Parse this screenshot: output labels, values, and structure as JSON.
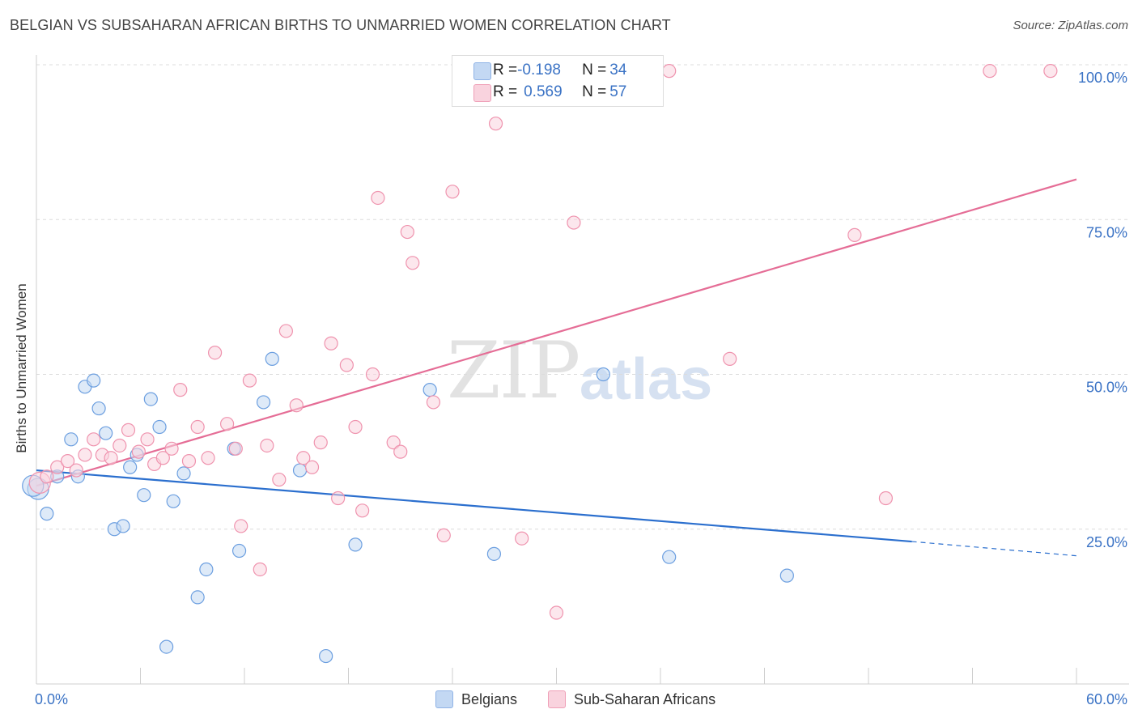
{
  "header": {
    "title": "BELGIAN VS SUBSAHARAN AFRICAN BIRTHS TO UNMARRIED WOMEN CORRELATION CHART",
    "source": "Source: ZipAtlas.com"
  },
  "watermark": {
    "zip": "ZIP",
    "atlas": "atlas"
  },
  "legend": {
    "rows": [
      {
        "r_label": "R = ",
        "r_value": "-0.198",
        "n_label": "N = ",
        "n_value": "34",
        "color": "#aac8f0"
      },
      {
        "r_label": "R = ",
        "r_value": "0.569",
        "n_label": "N = ",
        "n_value": "57",
        "color": "#f6b8ca"
      }
    ]
  },
  "bottom_legend": [
    {
      "label": "Belgians",
      "color": "#aac8f0"
    },
    {
      "label": "Sub-Saharan Africans",
      "color": "#f6b8ca"
    }
  ],
  "chart_data": {
    "type": "scatter",
    "title": "BELGIAN VS SUBSAHARAN AFRICAN BIRTHS TO UNMARRIED WOMEN CORRELATION CHART",
    "xlabel": "",
    "ylabel": "Births to Unmarried Women",
    "xlim": [
      0,
      60
    ],
    "ylim": [
      0,
      100
    ],
    "x_tick_labels": [
      {
        "value": 0,
        "label": "0.0%"
      },
      {
        "value": 60,
        "label": "60.0%"
      }
    ],
    "y_tick_labels": [
      {
        "value": 25,
        "label": "25.0%"
      },
      {
        "value": 50,
        "label": "50.0%"
      },
      {
        "value": 75,
        "label": "75.0%"
      },
      {
        "value": 100,
        "label": "100.0%"
      }
    ],
    "series": [
      {
        "name": "Belgians",
        "color": "#6c9fe0",
        "fill": "#c3d8f3",
        "line_color": "#2b6fce",
        "R": -0.198,
        "N": 34,
        "trend": {
          "x0": 0,
          "y0": 34.5,
          "x1": 50.5,
          "y1": 23.0,
          "dash_to_x": 60,
          "dash_to_y": 20.7
        },
        "points": [
          [
            0.1,
            31.5
          ],
          [
            0.6,
            27.5
          ],
          [
            1.2,
            33.5
          ],
          [
            2.0,
            39.5
          ],
          [
            2.4,
            33.5
          ],
          [
            2.8,
            48.0
          ],
          [
            3.3,
            49.0
          ],
          [
            3.6,
            44.5
          ],
          [
            4.0,
            40.5
          ],
          [
            4.5,
            25.0
          ],
          [
            5.0,
            25.5
          ],
          [
            5.4,
            35.0
          ],
          [
            5.8,
            37.0
          ],
          [
            6.2,
            30.5
          ],
          [
            6.6,
            46.0
          ],
          [
            7.1,
            41.5
          ],
          [
            7.5,
            6.0
          ],
          [
            7.9,
            29.5
          ],
          [
            8.5,
            34.0
          ],
          [
            9.3,
            14.0
          ],
          [
            9.8,
            18.5
          ],
          [
            11.4,
            38.0
          ],
          [
            11.7,
            21.5
          ],
          [
            13.1,
            45.5
          ],
          [
            13.6,
            52.5
          ],
          [
            15.2,
            34.5
          ],
          [
            16.7,
            4.5
          ],
          [
            18.4,
            22.5
          ],
          [
            22.7,
            47.5
          ],
          [
            26.4,
            21.0
          ],
          [
            32.7,
            50.0
          ],
          [
            36.5,
            20.5
          ],
          [
            43.3,
            17.5
          ],
          [
            -0.2,
            32.0
          ]
        ]
      },
      {
        "name": "Sub-Saharan Africans",
        "color": "#ef93ae",
        "fill": "#f9d3de",
        "line_color": "#e56d96",
        "R": 0.569,
        "N": 57,
        "trend": {
          "x0": 0,
          "y0": 32.0,
          "x1": 60,
          "y1": 81.5
        },
        "points": [
          [
            0.2,
            32.5
          ],
          [
            0.6,
            33.5
          ],
          [
            1.2,
            35.0
          ],
          [
            1.8,
            36.0
          ],
          [
            2.3,
            34.5
          ],
          [
            2.8,
            37.0
          ],
          [
            3.3,
            39.5
          ],
          [
            3.8,
            37.0
          ],
          [
            4.3,
            36.5
          ],
          [
            4.8,
            38.5
          ],
          [
            5.3,
            41.0
          ],
          [
            5.9,
            37.5
          ],
          [
            6.4,
            39.5
          ],
          [
            6.8,
            35.5
          ],
          [
            7.3,
            36.5
          ],
          [
            7.8,
            38.0
          ],
          [
            8.3,
            47.5
          ],
          [
            8.8,
            36.0
          ],
          [
            9.3,
            41.5
          ],
          [
            9.9,
            36.5
          ],
          [
            10.3,
            53.5
          ],
          [
            11.0,
            42.0
          ],
          [
            11.5,
            38.0
          ],
          [
            11.8,
            25.5
          ],
          [
            12.3,
            49.0
          ],
          [
            12.9,
            18.5
          ],
          [
            13.3,
            38.5
          ],
          [
            14.0,
            33.0
          ],
          [
            14.4,
            57.0
          ],
          [
            15.0,
            45.0
          ],
          [
            15.4,
            36.5
          ],
          [
            15.9,
            35.0
          ],
          [
            16.4,
            39.0
          ],
          [
            17.0,
            55.0
          ],
          [
            17.4,
            30.0
          ],
          [
            17.9,
            51.5
          ],
          [
            18.4,
            41.5
          ],
          [
            18.8,
            28.0
          ],
          [
            19.4,
            50.0
          ],
          [
            19.7,
            78.5
          ],
          [
            20.6,
            39.0
          ],
          [
            21.0,
            37.5
          ],
          [
            21.4,
            73.0
          ],
          [
            21.7,
            68.0
          ],
          [
            22.9,
            45.5
          ],
          [
            23.5,
            24.0
          ],
          [
            24.0,
            79.5
          ],
          [
            26.5,
            90.5
          ],
          [
            28.0,
            23.5
          ],
          [
            30.0,
            11.5
          ],
          [
            31.0,
            74.5
          ],
          [
            36.5,
            99.0
          ],
          [
            40.0,
            52.5
          ],
          [
            47.2,
            72.5
          ],
          [
            49.0,
            30.0
          ],
          [
            55.0,
            99.0
          ],
          [
            58.5,
            99.0
          ]
        ]
      }
    ]
  }
}
